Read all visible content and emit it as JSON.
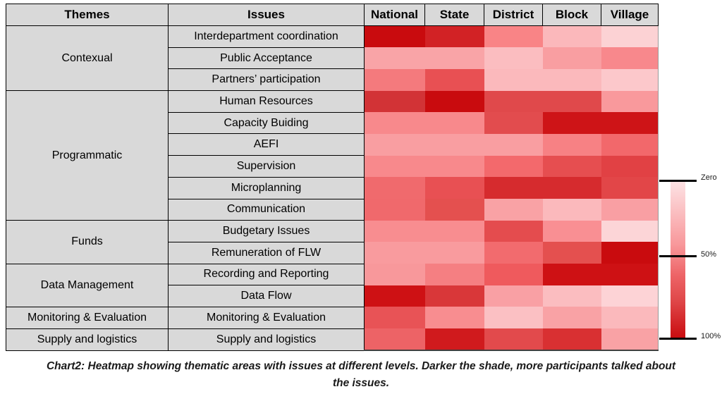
{
  "caption": "Chart2: Heatmap showing thematic areas with issues at different levels. Darker the shade, more participants talked about the issues.",
  "legend": {
    "labels": [
      "Zero",
      "50%",
      "100%"
    ],
    "gradient_top_color": "#FDE3E5",
    "gradient_bottom_color": "#C90B0E"
  },
  "chart_data": {
    "type": "heatmap",
    "title": "Chart2: Heatmap showing thematic areas with issues at different levels. Darker the shade, more participants talked about the issues.",
    "corner_headers": {
      "themes": "Themes",
      "issues": "Issues"
    },
    "columns": [
      "National",
      "State",
      "District",
      "Block",
      "Village"
    ],
    "legend_scale": {
      "min_label": "Zero",
      "mid_label": "50%",
      "max_label": "100%",
      "min_color": "#FDE3E5",
      "max_color": "#C90B0E"
    },
    "rows": [
      {
        "theme": "Contexual",
        "issue": "Interdepartment coordination",
        "colors": [
          "#C90B0E",
          "#D22225",
          "#F98486",
          "#FBB8BB",
          "#FCD2D4"
        ],
        "values_pct_estimated": [
          100,
          85,
          40,
          18,
          8
        ]
      },
      {
        "theme": "Contexual",
        "issue": "Public Acceptance",
        "colors": [
          "#F9A4A7",
          "#F9A4A7",
          "#FBBDC0",
          "#F99EA1",
          "#F8888C"
        ],
        "values_pct_estimated": [
          28,
          28,
          18,
          26,
          38
        ]
      },
      {
        "theme": "Contexual",
        "issue": "Partners’ participation",
        "colors": [
          "#F47A7D",
          "#E85053",
          "#FBB9BC",
          "#FBB9BC",
          "#FCC8CB"
        ],
        "values_pct_estimated": [
          42,
          60,
          18,
          18,
          12
        ]
      },
      {
        "theme": "Programmatic",
        "issue": "Human Resources",
        "colors": [
          "#D23336",
          "#C90B0E",
          "#E0494B",
          "#E0494B",
          "#F9999C"
        ],
        "values_pct_estimated": [
          85,
          100,
          65,
          65,
          28
        ]
      },
      {
        "theme": "Programmatic",
        "issue": "Capacity Buiding",
        "colors": [
          "#F8898C",
          "#F8898C",
          "#E24C4E",
          "#CE1417",
          "#CE1417"
        ],
        "values_pct_estimated": [
          38,
          38,
          63,
          90,
          90
        ]
      },
      {
        "theme": "Programmatic",
        "issue": "AEFI",
        "colors": [
          "#F99EA1",
          "#F99EA1",
          "#F99EA1",
          "#F78184",
          "#F2686B"
        ],
        "values_pct_estimated": [
          28,
          28,
          28,
          40,
          50
        ]
      },
      {
        "theme": "Programmatic",
        "issue": "Supervision",
        "colors": [
          "#F8898C",
          "#F8898C",
          "#F3696C",
          "#E64E50",
          "#E14144"
        ],
        "values_pct_estimated": [
          38,
          38,
          50,
          60,
          65
        ]
      },
      {
        "theme": "Programmatic",
        "issue": "Microplanning",
        "colors": [
          "#F06A6D",
          "#E85053",
          "#D62B2E",
          "#D62B2E",
          "#E24648"
        ],
        "values_pct_estimated": [
          50,
          60,
          80,
          80,
          63
        ]
      },
      {
        "theme": "Programmatic",
        "issue": "Communication",
        "colors": [
          "#F0696C",
          "#E4504F",
          "#F9A2A5",
          "#FBB9BC",
          "#F99FA3"
        ],
        "values_pct_estimated": [
          50,
          60,
          28,
          18,
          28
        ]
      },
      {
        "theme": "Funds",
        "issue": "Budgetary Issues",
        "colors": [
          "#F88D90",
          "#F88D90",
          "#E44C4E",
          "#F98F93",
          "#FCD5D7"
        ],
        "values_pct_estimated": [
          38,
          38,
          62,
          36,
          8
        ]
      },
      {
        "theme": "Funds",
        "issue": "Remuneration of FLW",
        "colors": [
          "#F99B9E",
          "#F99B9E",
          "#F26B6E",
          "#E4504F",
          "#C90B0E"
        ],
        "values_pct_estimated": [
          28,
          28,
          50,
          60,
          100
        ]
      },
      {
        "theme": "Data Management",
        "issue": "Recording and Reporting",
        "colors": [
          "#F8989B",
          "#F57F82",
          "#EF5A5D",
          "#CE1114",
          "#CE1114"
        ],
        "values_pct_estimated": [
          30,
          42,
          57,
          90,
          90
        ]
      },
      {
        "theme": "Data Management",
        "issue": "Data Flow",
        "colors": [
          "#CE1114",
          "#D93739",
          "#F9A0A4",
          "#FBBDC0",
          "#FDD3D6"
        ],
        "values_pct_estimated": [
          90,
          78,
          28,
          18,
          8
        ]
      },
      {
        "theme": "Monitoring & Evaluation",
        "issue": "Monitoring & Evaluation",
        "colors": [
          "#E85356",
          "#F88D90",
          "#FBC0C3",
          "#F9A2A5",
          "#FBB9BC"
        ],
        "values_pct_estimated": [
          60,
          38,
          16,
          28,
          18
        ]
      },
      {
        "theme": "Supply and logistics",
        "issue": "Supply and logistics",
        "colors": [
          "#ED6366",
          "#D01A1D",
          "#E24A4C",
          "#D93032",
          "#F9A2A5"
        ],
        "values_pct_estimated": [
          53,
          88,
          64,
          78,
          28
        ]
      }
    ]
  }
}
